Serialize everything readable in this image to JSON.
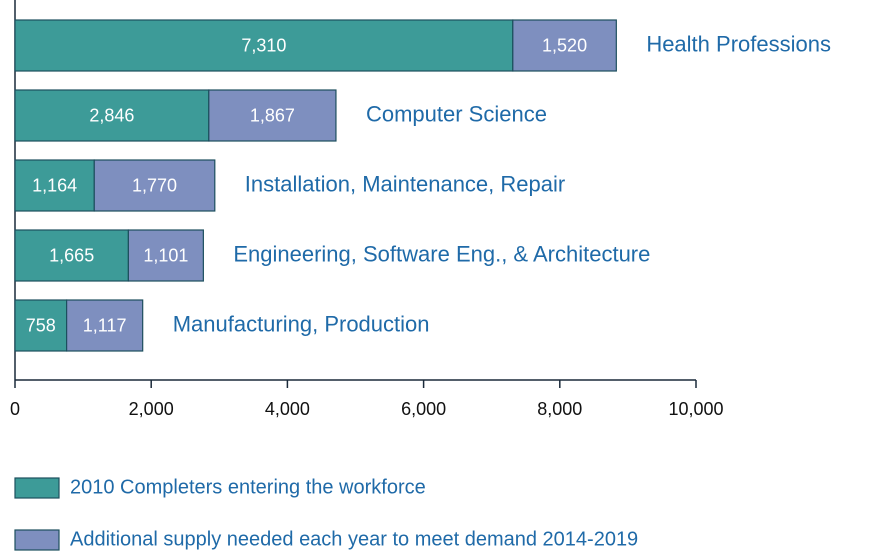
{
  "chart_data": {
    "type": "bar",
    "orientation": "horizontal",
    "stacked": true,
    "categories": [
      "Health Professions",
      "Computer Science",
      "Installation, Maintenance, Repair",
      "Engineering, Software Eng., & Architecture",
      "Manufacturing, Production"
    ],
    "series": [
      {
        "name": "2010 Completers entering the workforce",
        "color": "#3d9b98",
        "values": [
          7310,
          2846,
          1164,
          1665,
          758
        ],
        "value_labels": [
          "7,310",
          "2,846",
          "1,164",
          "1,665",
          "758"
        ]
      },
      {
        "name": "Additional supply needed each year to meet demand 2014-2019",
        "color": "#7e8fbf",
        "values": [
          1520,
          1867,
          1770,
          1101,
          1117
        ],
        "value_labels": [
          "1,520",
          "1,867",
          "1,770",
          "1,101",
          "1,117"
        ]
      }
    ],
    "xlim": [
      0,
      10000
    ],
    "xticks": [
      0,
      {
        "value": 2000,
        "label": "2,000"
      },
      {
        "value": 4000,
        "label": "4,000"
      },
      {
        "value": 6000,
        "label": "6,000"
      },
      {
        "value": 8000,
        "label": "8,000"
      },
      {
        "value": 10000,
        "label": "10,000"
      }
    ]
  }
}
